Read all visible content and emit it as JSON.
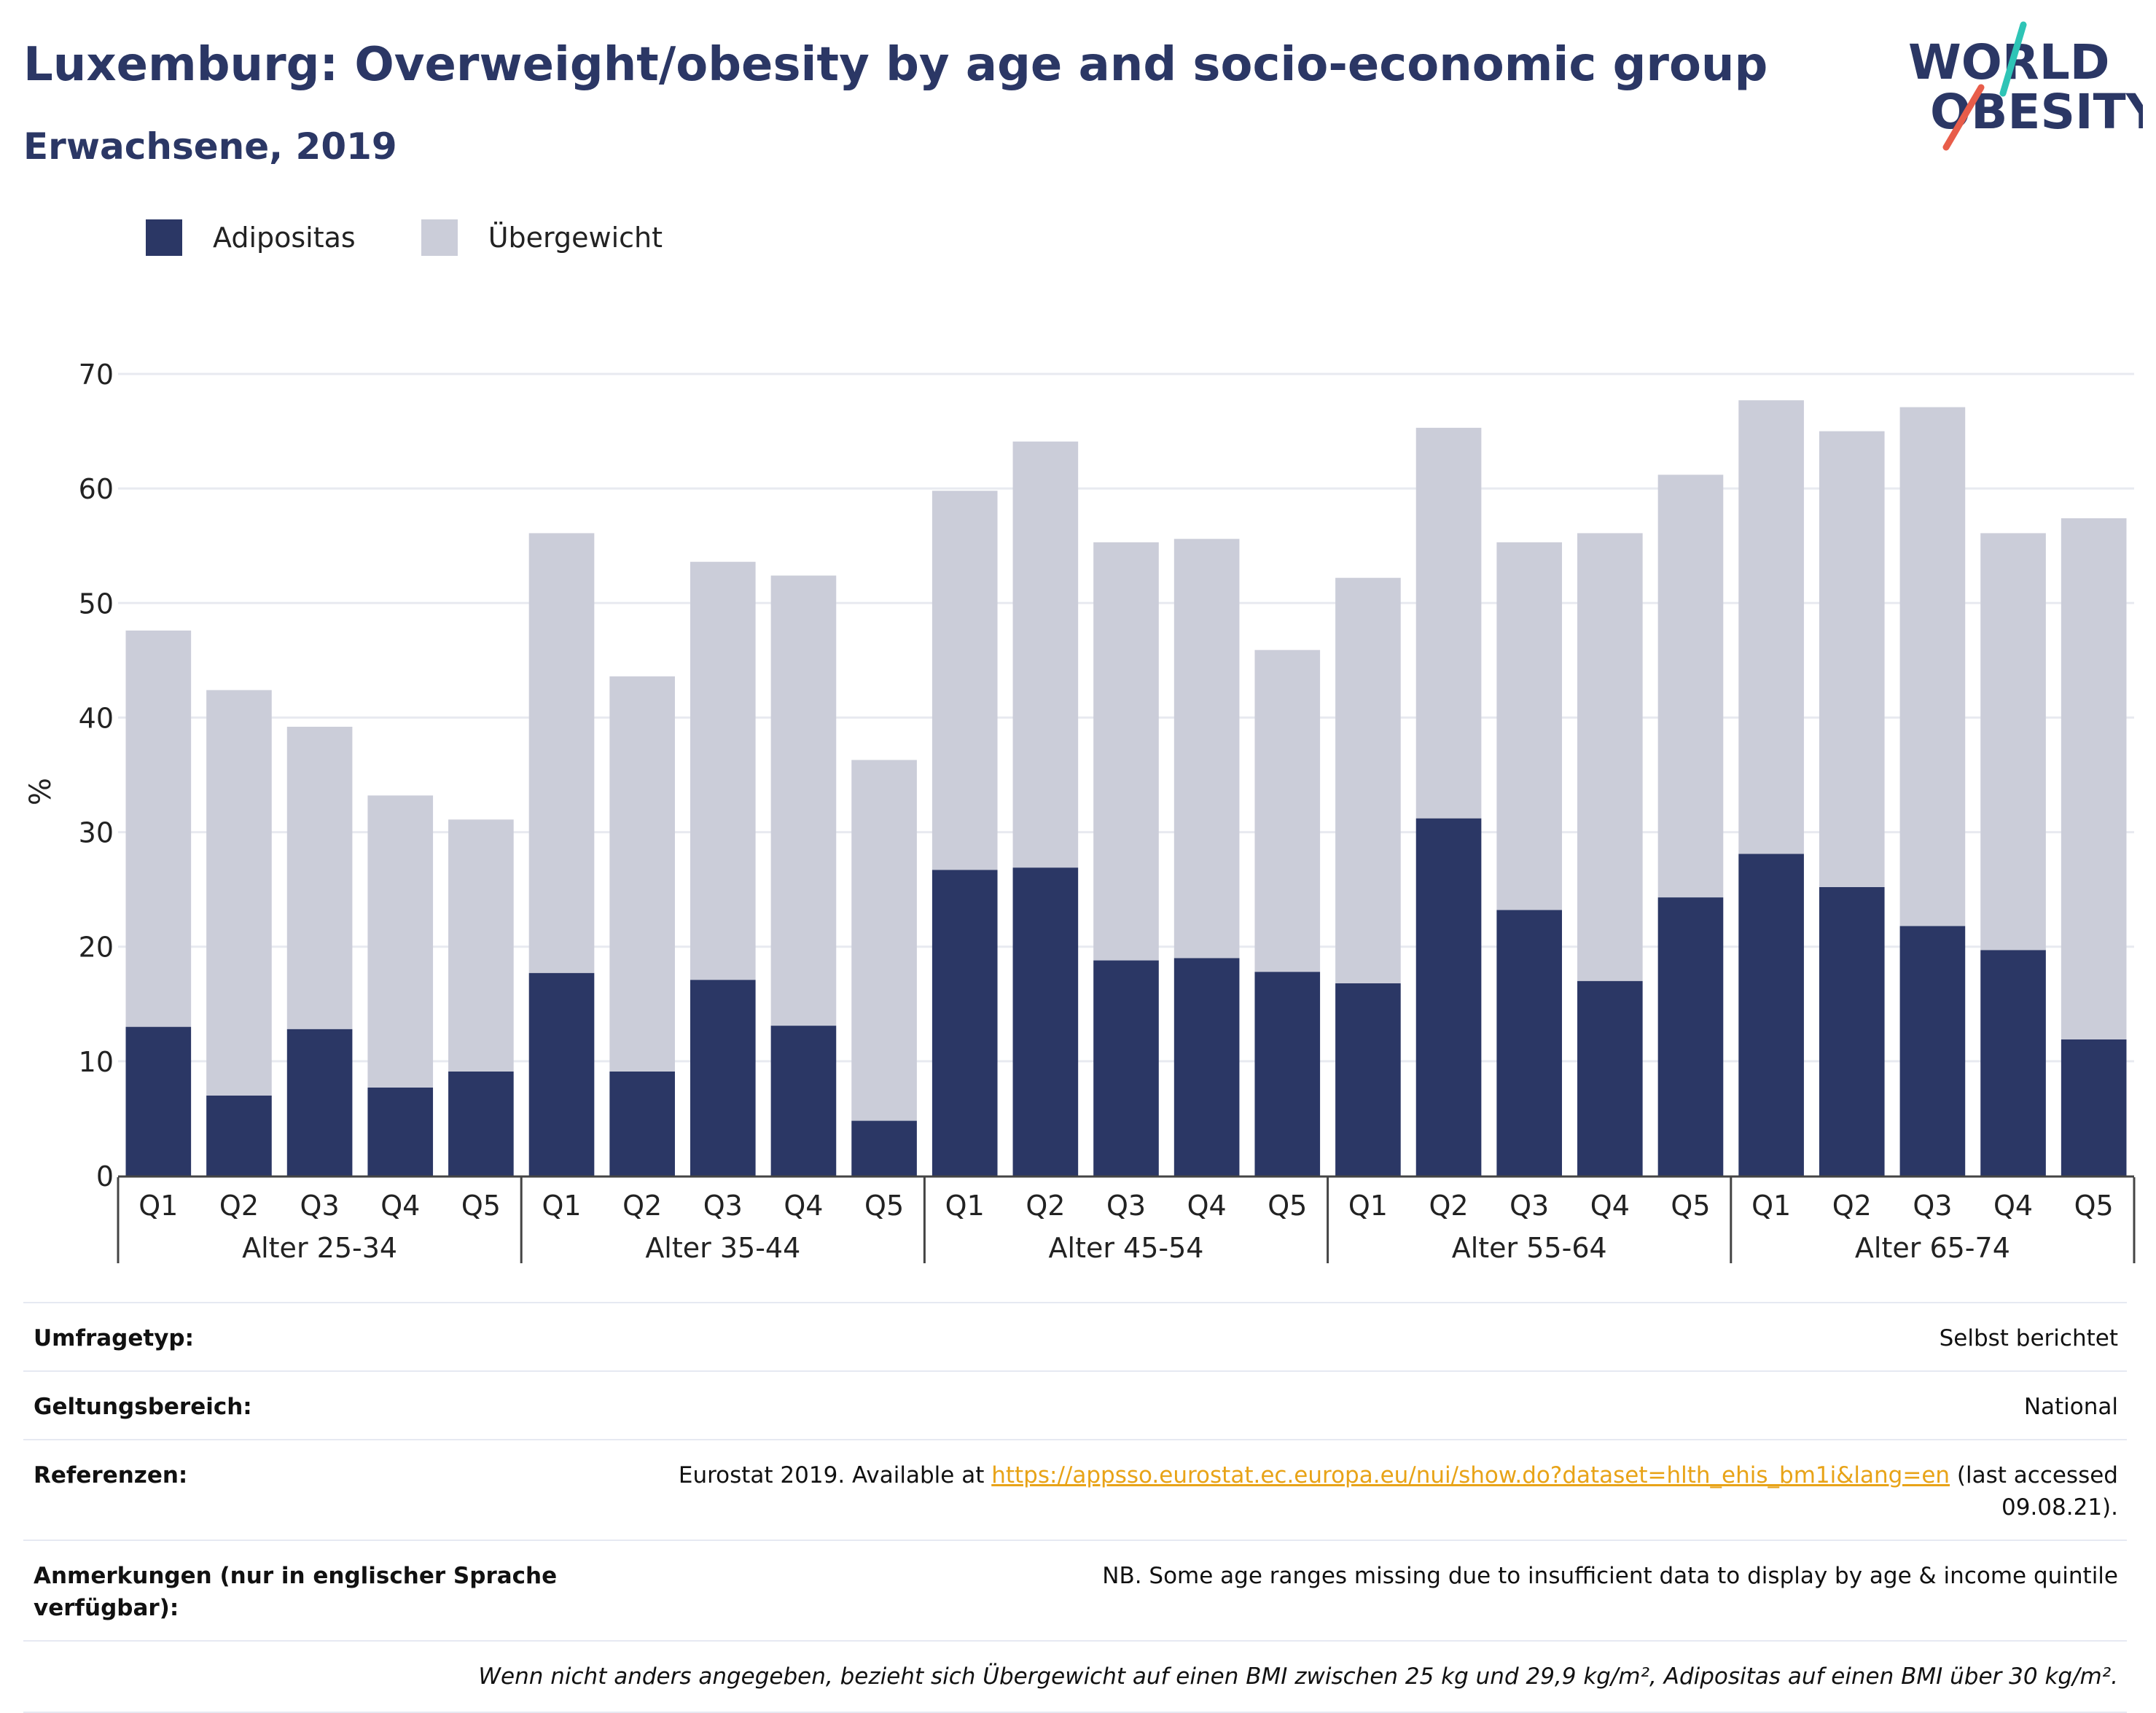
{
  "title": "Luxemburg: Overweight/obesity by age and socio-economic group",
  "subtitle": "Erwachsene, 2019",
  "logo": {
    "line1": "WORLD",
    "line2": "OBESITY",
    "accent_colors": [
      "#2ec4b6",
      "#e85d4a"
    ]
  },
  "colors": {
    "obesity": "#2b3765",
    "overweight": "#cbcdd9",
    "grid": "#e8eaf0",
    "axis": "#444444"
  },
  "chart_data": {
    "type": "bar",
    "stacked": true,
    "xlabel": "",
    "ylabel": "%",
    "ylim": [
      0,
      70
    ],
    "yticks": [
      0,
      10,
      20,
      30,
      40,
      50,
      60,
      70
    ],
    "grid": true,
    "legend": "top-left",
    "groups": [
      {
        "label": "Alter 25-34",
        "categories": [
          "Q1",
          "Q2",
          "Q3",
          "Q4",
          "Q5"
        ]
      },
      {
        "label": "Alter 35-44",
        "categories": [
          "Q1",
          "Q2",
          "Q3",
          "Q4",
          "Q5"
        ]
      },
      {
        "label": "Alter 45-54",
        "categories": [
          "Q1",
          "Q2",
          "Q3",
          "Q4",
          "Q5"
        ]
      },
      {
        "label": "Alter 55-64",
        "categories": [
          "Q1",
          "Q2",
          "Q3",
          "Q4",
          "Q5"
        ]
      },
      {
        "label": "Alter 65-74",
        "categories": [
          "Q1",
          "Q2",
          "Q3",
          "Q4",
          "Q5"
        ]
      }
    ],
    "series": [
      {
        "name": "Adipositas",
        "values": [
          13.0,
          7.0,
          12.8,
          7.7,
          9.1,
          17.7,
          9.1,
          17.1,
          13.1,
          4.8,
          26.7,
          26.9,
          18.8,
          19.0,
          17.8,
          16.8,
          31.2,
          23.2,
          17.0,
          24.3,
          28.1,
          25.2,
          21.8,
          19.7,
          11.9
        ]
      },
      {
        "name": "Übergewicht",
        "values": [
          34.6,
          35.4,
          26.4,
          25.5,
          22.0,
          38.4,
          34.5,
          36.5,
          39.3,
          31.5,
          33.1,
          37.2,
          36.5,
          36.6,
          28.1,
          35.4,
          34.1,
          32.1,
          39.1,
          36.9,
          39.6,
          39.8,
          45.3,
          36.4,
          45.5
        ]
      }
    ]
  },
  "info": [
    {
      "label": "Umfragetyp:",
      "value": "Selbst berichtet"
    },
    {
      "label": "Geltungsbereich:",
      "value": "National"
    },
    {
      "label": "Referenzen:",
      "value_prefix": "Eurostat 2019. Available at ",
      "link": "https://appsso.eurostat.ec.europa.eu/nui/show.do?dataset=hlth_ehis_bm1i&lang=en",
      "value_suffix": " (last accessed 09.08.21)."
    },
    {
      "label": "Anmerkungen (nur in englischer Sprache verfügbar):",
      "value": "NB. Some age ranges missing due to insufficient data to display by age & income quintile"
    }
  ],
  "footnote": "Wenn nicht anders angegeben, bezieht sich Übergewicht auf einen BMI zwischen 25 kg und 29,9 kg/m², Adipositas auf einen BMI über 30 kg/m²."
}
